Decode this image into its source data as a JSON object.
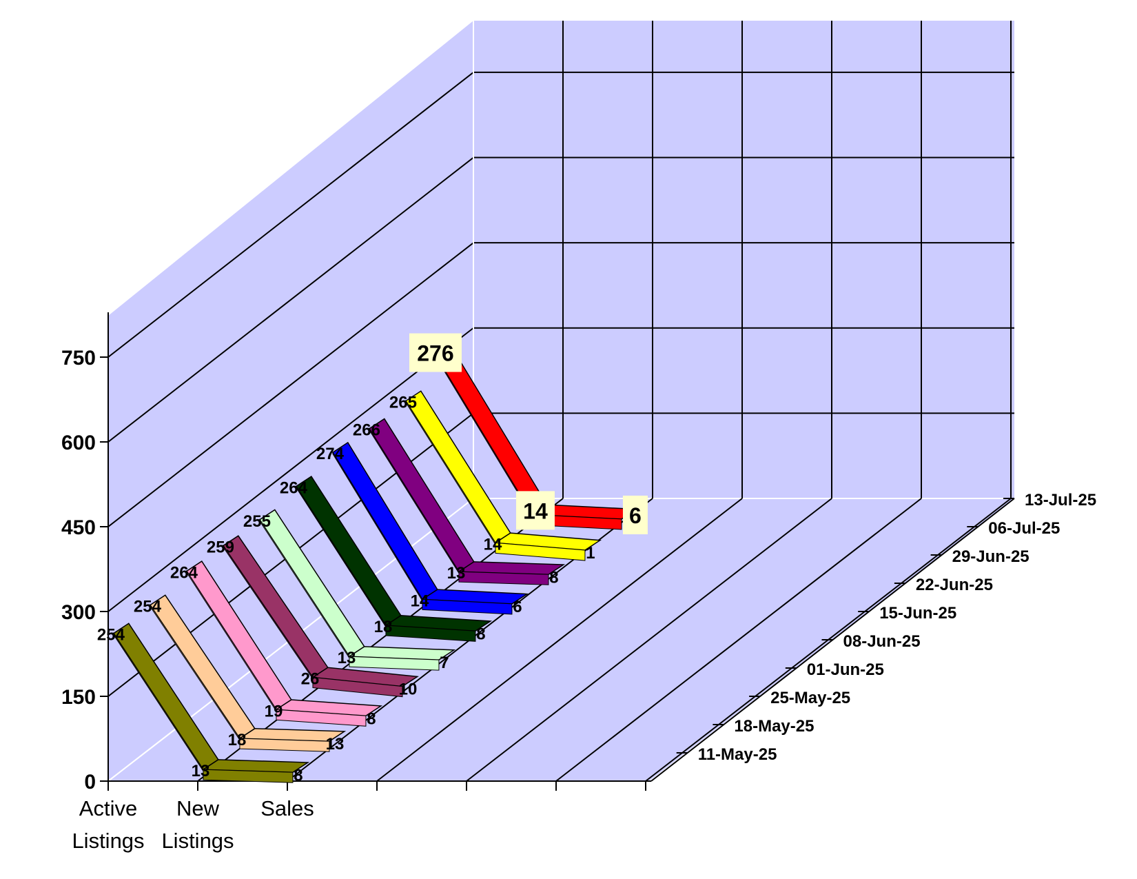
{
  "chart_data": {
    "type": "line",
    "style": "3d-ribbon",
    "categories": [
      "Active Listings",
      "New Listings",
      "Sales"
    ],
    "category_lines": [
      [
        "Active",
        "Listings"
      ],
      [
        "New",
        "Listings"
      ],
      [
        "Sales",
        ""
      ]
    ],
    "series": [
      {
        "name": "11-May-25",
        "values": [
          254,
          13,
          8
        ],
        "color": "#808000"
      },
      {
        "name": "18-May-25",
        "values": [
          254,
          18,
          13
        ],
        "color": "#FFCC99"
      },
      {
        "name": "25-May-25",
        "values": [
          264,
          19,
          8
        ],
        "color": "#FF99CC"
      },
      {
        "name": "01-Jun-25",
        "values": [
          259,
          26,
          10
        ],
        "color": "#993366"
      },
      {
        "name": "08-Jun-25",
        "values": [
          255,
          13,
          7
        ],
        "color": "#CCFFCC"
      },
      {
        "name": "15-Jun-25",
        "values": [
          264,
          18,
          8
        ],
        "color": "#003300"
      },
      {
        "name": "22-Jun-25",
        "values": [
          274,
          14,
          6
        ],
        "color": "#0000FF"
      },
      {
        "name": "29-Jun-25",
        "values": [
          266,
          13,
          8
        ],
        "color": "#800080"
      },
      {
        "name": "06-Jul-25",
        "values": [
          265,
          14,
          1
        ],
        "color": "#FFFF00"
      },
      {
        "name": "13-Jul-25",
        "values": [
          276,
          14,
          6
        ],
        "color": "#FF0000"
      }
    ],
    "highlight_series": "13-Jul-25",
    "highlight_fill": "#FFFFCC",
    "ylim": [
      0,
      750
    ],
    "yticks": [
      0,
      150,
      300,
      450,
      600,
      750
    ],
    "wall_color": "#CCCCFF",
    "grid": true
  }
}
